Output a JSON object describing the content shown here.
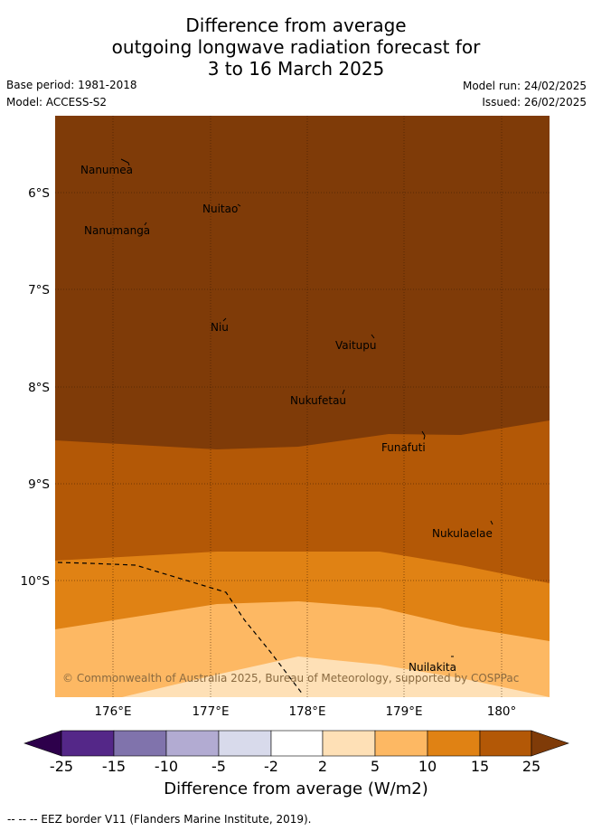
{
  "title": {
    "line1": "Difference from average",
    "line2": "outgoing longwave radiation forecast for",
    "line3": "3 to 16 March 2025"
  },
  "meta": {
    "base_period": "Base period: 1981-2018",
    "model": "Model: ACCESS-S2",
    "model_run": "Model run: 24/02/2025",
    "issued": "Issued: 26/02/2025"
  },
  "map": {
    "lon_labels": [
      "176°E",
      "177°E",
      "178°E",
      "179°E",
      "180°"
    ],
    "lat_labels": [
      "6°S",
      "7°S",
      "8°S",
      "9°S",
      "10°S"
    ],
    "places": [
      "Nanumea",
      "Nuitao",
      "Nanumanga",
      "Niu",
      "Vaitupu",
      "Nukufetau",
      "Funafuti",
      "Nukulaelae",
      "Nuilakita"
    ],
    "copyright": "© Commonwealth of Australia 2025, Bureau of Meteorology, supported by COSPPac",
    "colors": {
      "above_25": "#7f3b08",
      "15_25": "#b35806",
      "10_15": "#e08214",
      "5_10": "#fdb863",
      "2_5": "#fee0b6"
    }
  },
  "colorbar": {
    "labels": [
      "-25",
      "-15",
      "-10",
      "-5",
      "-2",
      "2",
      "5",
      "10",
      "15",
      "25"
    ],
    "colors": [
      "#2d004b",
      "#542788",
      "#8073ac",
      "#b2abd2",
      "#d8daeb",
      "#ffffff",
      "#fee0b6",
      "#fdb863",
      "#e08214",
      "#b35806",
      "#7f3b08"
    ],
    "title": "Difference from average (W/m2)"
  },
  "footnote": "--  --  -- EEZ border V11 (Flanders Marine Institute, 2019)."
}
